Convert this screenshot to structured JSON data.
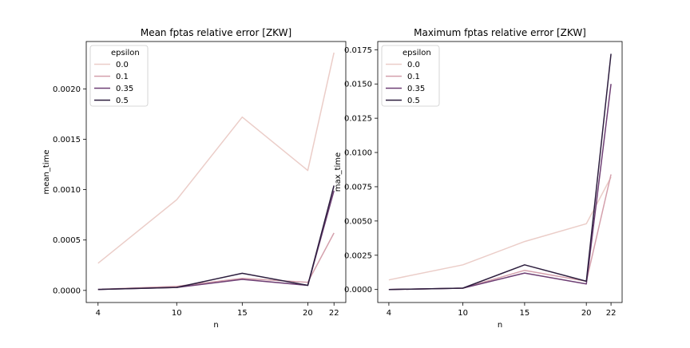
{
  "chart_data": [
    {
      "type": "line",
      "title": "Mean fptas relative error [ZKW]",
      "xlabel": "n",
      "ylabel": "mean_time",
      "x": [
        4,
        10,
        15,
        20,
        22
      ],
      "xticks": [
        "4",
        "10",
        "15",
        "20",
        "22"
      ],
      "xlim": [
        3.1,
        22.9
      ],
      "ylim": [
        -0.00012,
        0.00247
      ],
      "yticks": [
        "0.0000",
        "0.0005",
        "0.0010",
        "0.0015",
        "0.0020"
      ],
      "ytick_values": [
        0,
        0.0005,
        0.001,
        0.0015,
        0.002
      ],
      "legend": {
        "title": "epsilon",
        "placement": "upper-left"
      },
      "series": [
        {
          "name": "0.0",
          "color": "#ebcdc8",
          "values": [
            0.00027,
            0.0009,
            0.00172,
            0.00119,
            0.00236
          ]
        },
        {
          "name": "0.1",
          "color": "#d4a0ac",
          "values": [
            1e-05,
            4e-05,
            0.00012,
            8e-05,
            0.00057
          ]
        },
        {
          "name": "0.35",
          "color": "#6e3f74",
          "values": [
            1e-05,
            3e-05,
            0.00011,
            5e-05,
            0.00099
          ]
        },
        {
          "name": "0.5",
          "color": "#2d1e3e",
          "values": [
            1e-05,
            3e-05,
            0.00017,
            5e-05,
            0.00104
          ]
        }
      ]
    },
    {
      "type": "line",
      "title": "Maximum fptas relative error [ZKW]",
      "xlabel": "n",
      "ylabel": "max_time",
      "x": [
        4,
        10,
        15,
        20,
        22
      ],
      "xticks": [
        "4",
        "10",
        "15",
        "20",
        "22"
      ],
      "xlim": [
        3.1,
        22.9
      ],
      "ylim": [
        -0.00095,
        0.0181
      ],
      "yticks": [
        "0.0000",
        "0.0025",
        "0.0050",
        "0.0075",
        "0.0100",
        "0.0125",
        "0.0150",
        "0.0175"
      ],
      "ytick_values": [
        0,
        0.0025,
        0.005,
        0.0075,
        0.01,
        0.0125,
        0.015,
        0.0175
      ],
      "legend": {
        "title": "epsilon",
        "placement": "upper-left"
      },
      "series": [
        {
          "name": "0.0",
          "color": "#ebcdc8",
          "values": [
            0.0007,
            0.0018,
            0.0035,
            0.0048,
            0.0082
          ]
        },
        {
          "name": "0.1",
          "color": "#d4a0ac",
          "values": [
            0.0,
            0.0001,
            0.0014,
            0.0006,
            0.0084
          ]
        },
        {
          "name": "0.35",
          "color": "#6e3f74",
          "values": [
            0.0,
            0.0001,
            0.0012,
            0.0004,
            0.015
          ]
        },
        {
          "name": "0.5",
          "color": "#2d1e3e",
          "values": [
            0.0,
            0.0001,
            0.0018,
            0.0006,
            0.0172
          ]
        }
      ]
    }
  ]
}
